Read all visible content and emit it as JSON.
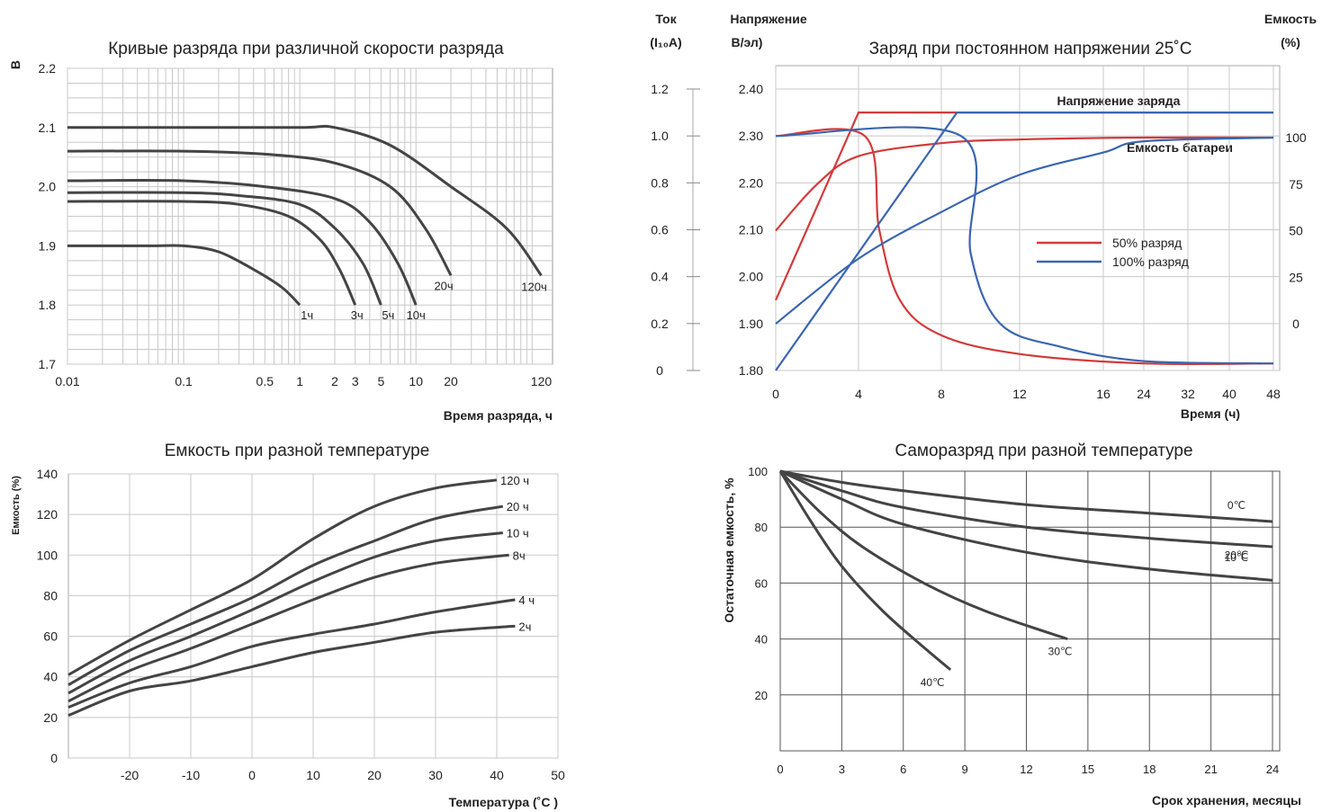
{
  "chart_data": [
    {
      "id": "discharge",
      "type": "line",
      "title": "Кривые разряда при различной скорости разряда",
      "ylabel": "В",
      "xlabel": "Время разряда, ч",
      "x_scale": "log",
      "xlim": [
        0.01,
        150
      ],
      "ylim": [
        1.7,
        2.2
      ],
      "x_ticks": [
        "0.01",
        "0.1",
        "0.5",
        "1",
        "2",
        "3",
        "5",
        "10",
        "20",
        "120"
      ],
      "x_tick_values": [
        0.01,
        0.1,
        0.5,
        1,
        2,
        3,
        5,
        10,
        20,
        120
      ],
      "y_ticks": [
        "1.7",
        "1.8",
        "1.9",
        "2.0",
        "2.1",
        "2.2"
      ],
      "y_tick_values": [
        1.7,
        1.8,
        1.9,
        2.0,
        2.1,
        2.2
      ],
      "grid": true,
      "series": [
        {
          "name": "1ч",
          "x": [
            0.01,
            0.05,
            0.1,
            0.2,
            0.4,
            0.7,
            1.0
          ],
          "y": [
            1.9,
            1.9,
            1.9,
            1.89,
            1.86,
            1.83,
            1.8
          ]
        },
        {
          "name": "3ч",
          "x": [
            0.01,
            0.1,
            0.3,
            0.8,
            1.5,
            2.2,
            3.0
          ],
          "y": [
            1.975,
            1.975,
            1.97,
            1.95,
            1.91,
            1.86,
            1.8
          ]
        },
        {
          "name": "5ч",
          "x": [
            0.01,
            0.1,
            0.3,
            1.0,
            2.0,
            3.5,
            5.0
          ],
          "y": [
            1.99,
            1.99,
            1.985,
            1.97,
            1.93,
            1.87,
            1.8
          ]
        },
        {
          "name": "10ч",
          "x": [
            0.01,
            0.1,
            0.5,
            2.0,
            4.0,
            7.0,
            10.0
          ],
          "y": [
            2.01,
            2.01,
            2.0,
            1.98,
            1.94,
            1.87,
            1.8
          ]
        },
        {
          "name": "20ч",
          "x": [
            0.01,
            0.1,
            0.5,
            2.0,
            6.0,
            12.0,
            20.0
          ],
          "y": [
            2.06,
            2.06,
            2.055,
            2.04,
            2.0,
            1.93,
            1.85
          ]
        },
        {
          "name": "120ч",
          "x": [
            0.01,
            0.1,
            1.0,
            2.0,
            6.0,
            20.0,
            60.0,
            120.0
          ],
          "y": [
            2.1,
            2.1,
            2.1,
            2.1,
            2.07,
            2.0,
            1.93,
            1.85
          ]
        }
      ]
    },
    {
      "id": "charge",
      "type": "line",
      "title": "Заряд при постоянном напряжении 25˚С",
      "xlabel": "Время (ч)",
      "axis_headers": {
        "current": "Ток",
        "current_unit": "(I₁₀A)",
        "voltage": "Напряжение",
        "voltage_unit": "В/эл)",
        "capacity": "Емкость",
        "capacity_unit": "(%)"
      },
      "x_ticks": [
        "0",
        "4",
        "8",
        "12",
        "16",
        "24",
        "32",
        "40",
        "48"
      ],
      "current_ticks": [
        "0",
        "0.2",
        "0.4",
        "0.6",
        "0.8",
        "1.0",
        "1.2"
      ],
      "current_tick_values": [
        0,
        0.2,
        0.4,
        0.6,
        0.8,
        1.0,
        1.2
      ],
      "voltage_ticks": [
        "1.80",
        "1.90",
        "2.00",
        "2.10",
        "2.20",
        "2.30",
        "2.40"
      ],
      "voltage_tick_values": [
        1.8,
        1.9,
        2.0,
        2.1,
        2.2,
        2.3,
        2.4
      ],
      "capacity_ticks": [
        "0",
        "25",
        "50",
        "75",
        "100"
      ],
      "capacity_tick_values": [
        0,
        25,
        50,
        75,
        100
      ],
      "annotations": [
        "Напряжение заряда",
        "Емкость батареи"
      ],
      "legend": [
        {
          "name": "50% разряд",
          "color": "#d33a3a"
        },
        {
          "name": "100% разряд",
          "color": "#3a66b0"
        }
      ],
      "series": [
        {
          "name": "50% разряд — напряжение",
          "color": "#d33a3a",
          "axis": "voltage",
          "x": [
            0,
            4,
            48
          ],
          "y": [
            1.95,
            2.35,
            2.35
          ]
        },
        {
          "name": "50% разряд — ток",
          "color": "#d33a3a",
          "axis": "current",
          "x": [
            0,
            4.3,
            5,
            6,
            8,
            12,
            24,
            48
          ],
          "y": [
            1.0,
            1.0,
            0.6,
            0.3,
            0.15,
            0.07,
            0.03,
            0.03
          ]
        },
        {
          "name": "50% разряд — емкость",
          "color": "#d33a3a",
          "axis": "capacity",
          "x": [
            0,
            2,
            4,
            8,
            12,
            24,
            48
          ],
          "y": [
            50,
            75,
            90,
            97,
            99,
            100,
            100
          ]
        },
        {
          "name": "100% разряд — напряжение",
          "color": "#3a66b0",
          "axis": "voltage",
          "x": [
            0,
            8.8,
            48
          ],
          "y": [
            1.8,
            2.35,
            2.35
          ]
        },
        {
          "name": "100% разряд — ток",
          "color": "#3a66b0",
          "axis": "current",
          "x": [
            0,
            9,
            9.5,
            11,
            14,
            24,
            48
          ],
          "y": [
            1.0,
            1.0,
            0.5,
            0.2,
            0.1,
            0.04,
            0.03
          ]
        },
        {
          "name": "100% разряд — емкость",
          "color": "#3a66b0",
          "axis": "capacity",
          "x": [
            0,
            4,
            8,
            12,
            16,
            24,
            48
          ],
          "y": [
            0,
            35,
            60,
            80,
            92,
            98,
            100
          ]
        }
      ]
    },
    {
      "id": "temperature",
      "type": "line",
      "title": "Емкость при разной температуре",
      "ylabel": "Емкость (%)",
      "xlabel": "Температура (˚С )",
      "xlim": [
        -30,
        50
      ],
      "ylim": [
        0,
        140
      ],
      "x_ticks": [
        "-20",
        "-10",
        "0",
        "10",
        "20",
        "30",
        "40",
        "50"
      ],
      "x_tick_values": [
        -20,
        -10,
        0,
        10,
        20,
        30,
        40,
        50
      ],
      "y_ticks": [
        "0",
        "20",
        "40",
        "60",
        "80",
        "100",
        "120",
        "140"
      ],
      "y_tick_values": [
        0,
        20,
        40,
        60,
        80,
        100,
        120,
        140
      ],
      "grid": true,
      "series": [
        {
          "name": "120 ч",
          "x": [
            -30,
            -20,
            -10,
            0,
            10,
            20,
            30,
            40
          ],
          "y": [
            41,
            58,
            73,
            88,
            108,
            124,
            133,
            137
          ]
        },
        {
          "name": "20 ч",
          "x": [
            -30,
            -20,
            -10,
            0,
            10,
            20,
            30,
            41
          ],
          "y": [
            36,
            53,
            66,
            79,
            95,
            107,
            118,
            124
          ]
        },
        {
          "name": "10 ч",
          "x": [
            -30,
            -20,
            -10,
            0,
            10,
            20,
            30,
            41
          ],
          "y": [
            32,
            48,
            60,
            73,
            87,
            99,
            107,
            111
          ]
        },
        {
          "name": "8ч",
          "x": [
            -30,
            -20,
            -10,
            0,
            10,
            20,
            30,
            42
          ],
          "y": [
            28,
            43,
            54,
            66,
            78,
            89,
            96,
            100
          ]
        },
        {
          "name": "4 ч",
          "x": [
            -30,
            -20,
            -10,
            0,
            10,
            20,
            30,
            43
          ],
          "y": [
            25,
            37,
            45,
            55,
            61,
            66,
            72,
            78
          ]
        },
        {
          "name": "2ч",
          "x": [
            -30,
            -20,
            -10,
            0,
            10,
            20,
            30,
            43
          ],
          "y": [
            21,
            33,
            38,
            45,
            52,
            57,
            62,
            65
          ]
        }
      ]
    },
    {
      "id": "selfdischarge",
      "type": "line",
      "title": "Саморазряд при разной температуре",
      "ylabel": "Остаточная емкость, %",
      "xlabel": "Срок хранения, месяцы",
      "xlim": [
        0,
        24
      ],
      "ylim": [
        0,
        100
      ],
      "x_ticks": [
        "0",
        "3",
        "6",
        "9",
        "12",
        "15",
        "18",
        "21",
        "24"
      ],
      "x_tick_values": [
        0,
        3,
        6,
        9,
        12,
        15,
        18,
        21,
        24
      ],
      "y_ticks": [
        "20",
        "40",
        "60",
        "80",
        "100"
      ],
      "y_tick_values": [
        20,
        40,
        60,
        80,
        100
      ],
      "grid": true,
      "series": [
        {
          "name": "0℃",
          "x": [
            0,
            3,
            6,
            12,
            18,
            24
          ],
          "y": [
            100,
            96,
            93,
            88,
            85,
            82
          ]
        },
        {
          "name": "10℃",
          "x": [
            0,
            3,
            6,
            12,
            18,
            24
          ],
          "y": [
            100,
            93,
            87,
            80,
            76,
            73
          ]
        },
        {
          "name": "20℃",
          "x": [
            0,
            3,
            6,
            12,
            18,
            24
          ],
          "y": [
            100,
            90,
            81,
            71,
            65,
            61
          ]
        },
        {
          "name": "30℃",
          "x": [
            0,
            2,
            4,
            7,
            10,
            14
          ],
          "y": [
            100,
            85,
            73,
            60,
            50,
            40
          ]
        },
        {
          "name": "40℃",
          "x": [
            0,
            1.5,
            3,
            5,
            7,
            8.3
          ],
          "y": [
            100,
            82,
            66,
            50,
            37,
            29
          ]
        }
      ]
    }
  ]
}
